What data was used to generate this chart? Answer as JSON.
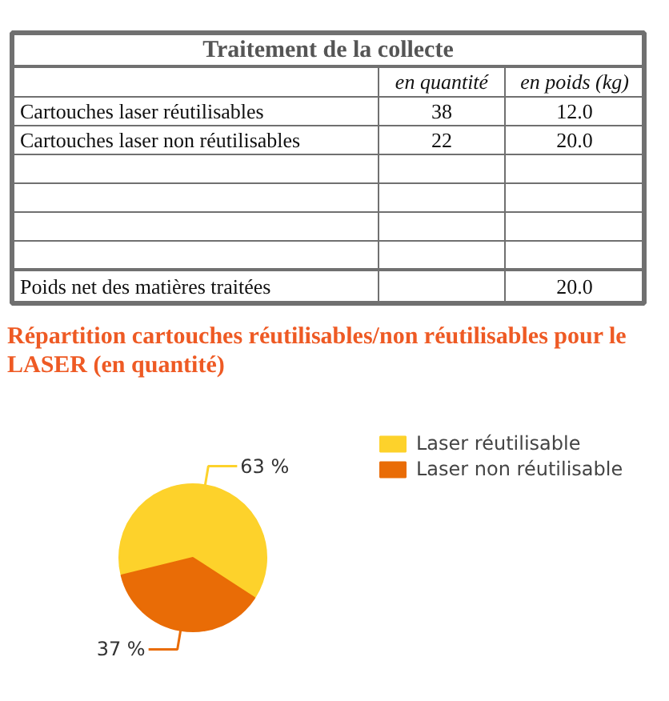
{
  "chart_data": [
    {
      "type": "other",
      "title": "Traitement de la collecte",
      "annotations": [
        "en quantité",
        "en poids (kg)",
        "Cartouches laser réutilisables",
        "38",
        "12.0",
        "Cartouches laser non réutilisables",
        "22",
        "20.0",
        "Poids net des matières traitées",
        "20.0"
      ]
    },
    {
      "type": "pie",
      "title": "Répartition cartouches réutilisables/non réutilisables pour le LASER (en quantité)",
      "categories": [
        "Laser réutilisable",
        "Laser non réutilisable"
      ],
      "values": [
        63,
        37
      ],
      "colors": [
        "#fdd22b",
        "#e96c06"
      ],
      "value_labels": [
        "63 %",
        "37 %"
      ],
      "legend": "right"
    }
  ]
}
